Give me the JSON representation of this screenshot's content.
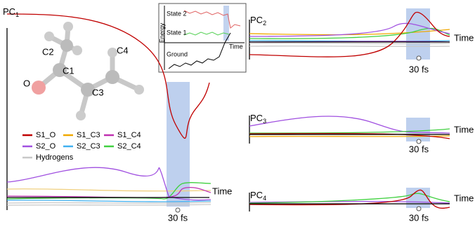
{
  "panels": [
    {
      "label": "PC",
      "sub": "1",
      "time": "Time",
      "marker": "30 fs"
    },
    {
      "label": "PC",
      "sub": "2",
      "time": "Time",
      "marker": "30 fs"
    },
    {
      "label": "PC",
      "sub": "3",
      "time": "Time",
      "marker": "30 fs"
    },
    {
      "label": "PC",
      "sub": "4",
      "time": "Time",
      "marker": "30 fs"
    }
  ],
  "molecule": {
    "atoms": [
      "C2",
      "C1",
      "C4",
      "C3",
      "O"
    ]
  },
  "legend": [
    {
      "name": "S1_O",
      "color": "#c00000"
    },
    {
      "name": "S1_C3",
      "color": "#f0a800"
    },
    {
      "name": "S1_C4",
      "color": "#c030b0"
    },
    {
      "name": "S2_O",
      "color": "#a050e0"
    },
    {
      "name": "S2_C3",
      "color": "#40b0f0"
    },
    {
      "name": "S2_C4",
      "color": "#40d040"
    },
    {
      "name": "Hydrogens",
      "color": "#c8c8c8"
    }
  ],
  "inset": {
    "states": [
      "State 2",
      "State 1",
      "Ground"
    ],
    "y_label": "Energy",
    "x_label": "Time"
  }
}
